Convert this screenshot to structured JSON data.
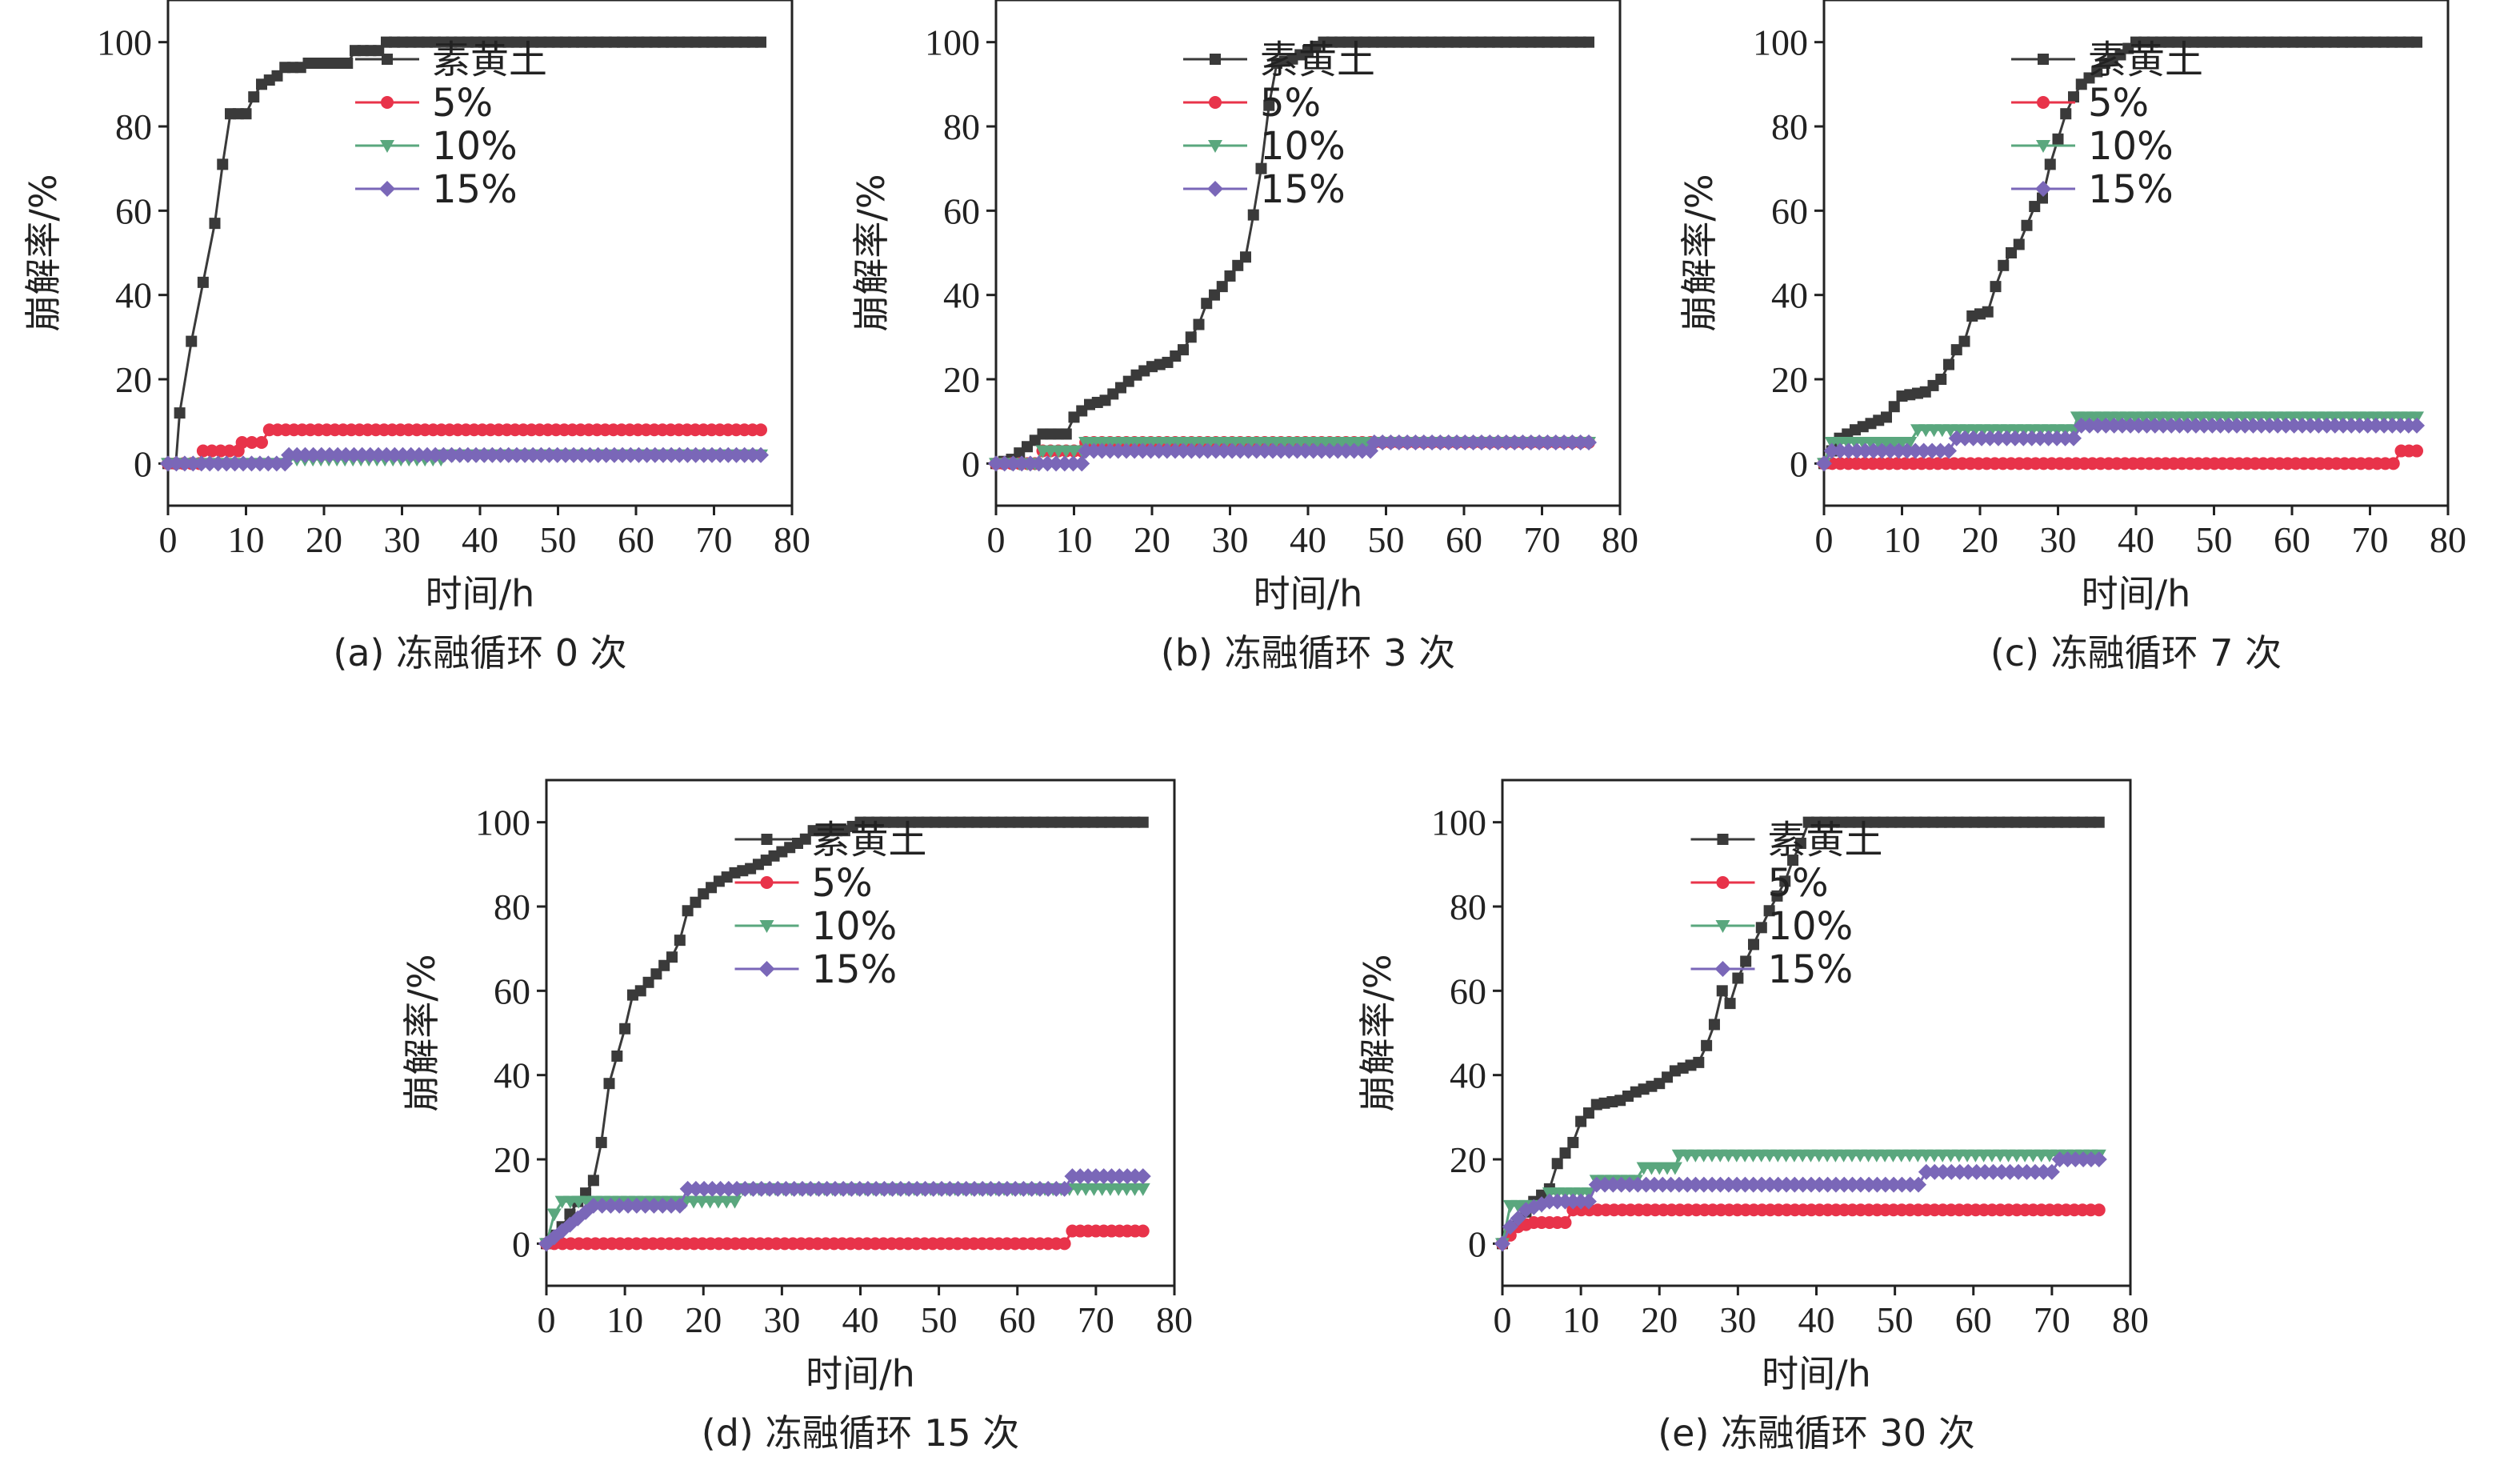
{
  "figure": {
    "background": "#ffffff"
  },
  "chart_data": [
    {
      "type": "line",
      "caption": "(a) 冻融循环 0 次",
      "xlabel": "时间/h",
      "ylabel": "崩解率/%",
      "xlim": [
        0,
        80
      ],
      "ylim": [
        -10,
        110
      ],
      "xticks": [
        0,
        10,
        20,
        30,
        40,
        50,
        60,
        70,
        80
      ],
      "yticks": [
        0,
        20,
        40,
        60,
        80,
        100
      ],
      "legend_position": "upper-right",
      "series": [
        {
          "name": "素黄土",
          "color": "#3a3a3a",
          "marker": "square",
          "points": [
            [
              0,
              0
            ],
            [
              1,
              0
            ],
            [
              1.5,
              12
            ],
            [
              3,
              29
            ],
            [
              4.5,
              43
            ],
            [
              6,
              57
            ],
            [
              7,
              71
            ],
            [
              8,
              83
            ],
            [
              10,
              83
            ],
            [
              11,
              87
            ],
            [
              12,
              90
            ],
            [
              14,
              92
            ],
            [
              15,
              94
            ],
            [
              17,
              94
            ],
            [
              18,
              95
            ],
            [
              23,
              95
            ],
            [
              24,
              98
            ],
            [
              27,
              98
            ],
            [
              28,
              100
            ],
            [
              76,
              100
            ]
          ]
        },
        {
          "name": "5%",
          "color": "#e8334a",
          "marker": "circle",
          "points": [
            [
              0,
              0
            ],
            [
              4,
              0
            ],
            [
              4.5,
              3
            ],
            [
              9,
              3
            ],
            [
              9.5,
              5
            ],
            [
              12,
              5
            ],
            [
              13,
              8
            ],
            [
              76,
              8
            ]
          ]
        },
        {
          "name": "10%",
          "color": "#5aa77e",
          "marker": "triangle-down",
          "points": [
            [
              0,
              0
            ],
            [
              15,
              0
            ],
            [
              15.5,
              1
            ],
            [
              35,
              1
            ],
            [
              35.5,
              2
            ],
            [
              76,
              2
            ]
          ]
        },
        {
          "name": "15%",
          "color": "#7a67b8",
          "marker": "diamond",
          "points": [
            [
              0,
              0
            ],
            [
              15,
              0
            ],
            [
              15.5,
              2
            ],
            [
              76,
              2
            ]
          ]
        }
      ]
    },
    {
      "type": "line",
      "caption": "(b) 冻融循环 3 次",
      "xlabel": "时间/h",
      "ylabel": "崩解率/%",
      "xlim": [
        0,
        80
      ],
      "ylim": [
        -10,
        110
      ],
      "xticks": [
        0,
        10,
        20,
        30,
        40,
        50,
        60,
        70,
        80
      ],
      "yticks": [
        0,
        20,
        40,
        60,
        80,
        100
      ],
      "legend_position": "upper-right",
      "series": [
        {
          "name": "素黄土",
          "color": "#3a3a3a",
          "marker": "square",
          "points": [
            [
              0,
              0
            ],
            [
              2,
              1
            ],
            [
              4,
              4
            ],
            [
              6,
              7
            ],
            [
              9,
              7
            ],
            [
              10,
              11
            ],
            [
              12,
              14
            ],
            [
              14,
              15
            ],
            [
              16,
              18
            ],
            [
              18,
              21
            ],
            [
              20,
              23
            ],
            [
              22,
              24
            ],
            [
              24,
              27
            ],
            [
              26,
              33
            ],
            [
              27,
              38
            ],
            [
              29,
              42
            ],
            [
              31,
              47
            ],
            [
              32,
              49
            ],
            [
              33,
              59
            ],
            [
              34,
              70
            ],
            [
              35,
              85
            ],
            [
              36,
              95
            ],
            [
              38,
              96
            ],
            [
              40,
              98
            ],
            [
              42,
              100
            ],
            [
              76,
              100
            ]
          ]
        },
        {
          "name": "5%",
          "color": "#e8334a",
          "marker": "circle",
          "points": [
            [
              0,
              0
            ],
            [
              5,
              0
            ],
            [
              6,
              3
            ],
            [
              11,
              3
            ],
            [
              11.5,
              5
            ],
            [
              48,
              5
            ],
            [
              48.5,
              5
            ],
            [
              76,
              5
            ]
          ]
        },
        {
          "name": "10%",
          "color": "#5aa77e",
          "marker": "triangle-down",
          "points": [
            [
              0,
              0
            ],
            [
              5,
              0
            ],
            [
              6,
              3
            ],
            [
              11,
              3
            ],
            [
              11.5,
              5
            ],
            [
              76,
              5
            ]
          ]
        },
        {
          "name": "15%",
          "color": "#7a67b8",
          "marker": "diamond",
          "points": [
            [
              0,
              0
            ],
            [
              11,
              0
            ],
            [
              11.5,
              3
            ],
            [
              48,
              3
            ],
            [
              48.5,
              5
            ],
            [
              76,
              5
            ]
          ]
        }
      ]
    },
    {
      "type": "line",
      "caption": "(c) 冻融循环 7 次",
      "xlabel": "时间/h",
      "ylabel": "崩解率/%",
      "xlim": [
        0,
        80
      ],
      "ylim": [
        -10,
        110
      ],
      "xticks": [
        0,
        10,
        20,
        30,
        40,
        50,
        60,
        70,
        80
      ],
      "yticks": [
        0,
        20,
        40,
        60,
        80,
        100
      ],
      "legend_position": "upper-right",
      "series": [
        {
          "name": "素黄土",
          "color": "#3a3a3a",
          "marker": "square",
          "points": [
            [
              0,
              0
            ],
            [
              2,
              6
            ],
            [
              4,
              8
            ],
            [
              8,
              11
            ],
            [
              10,
              16
            ],
            [
              13,
              17
            ],
            [
              15,
              20
            ],
            [
              17,
              27
            ],
            [
              18,
              29
            ],
            [
              19,
              35
            ],
            [
              21,
              36
            ],
            [
              22,
              42
            ],
            [
              23,
              47
            ],
            [
              24,
              50
            ],
            [
              25,
              52
            ],
            [
              27,
              61
            ],
            [
              28,
              63
            ],
            [
              29,
              71
            ],
            [
              30,
              77
            ],
            [
              31,
              83
            ],
            [
              32,
              87
            ],
            [
              33,
              90
            ],
            [
              35,
              93
            ],
            [
              36,
              95
            ],
            [
              38,
              97
            ],
            [
              40,
              100
            ],
            [
              76,
              100
            ]
          ]
        },
        {
          "name": "5%",
          "color": "#e8334a",
          "marker": "circle",
          "points": [
            [
              0,
              0
            ],
            [
              73,
              0
            ],
            [
              74,
              3
            ],
            [
              76,
              3
            ]
          ]
        },
        {
          "name": "10%",
          "color": "#5aa77e",
          "marker": "triangle-down",
          "points": [
            [
              0,
              0
            ],
            [
              1,
              5
            ],
            [
              11,
              5
            ],
            [
              12,
              8
            ],
            [
              32,
              8
            ],
            [
              32.5,
              11
            ],
            [
              76,
              11
            ]
          ]
        },
        {
          "name": "15%",
          "color": "#7a67b8",
          "marker": "diamond",
          "points": [
            [
              0,
              0
            ],
            [
              1,
              3
            ],
            [
              16,
              3
            ],
            [
              17,
              6
            ],
            [
              32,
              6
            ],
            [
              33,
              9
            ],
            [
              76,
              9
            ]
          ]
        }
      ]
    },
    {
      "type": "line",
      "caption": "(d) 冻融循环 15 次",
      "xlabel": "时间/h",
      "ylabel": "崩解率/%",
      "xlim": [
        0,
        80
      ],
      "ylim": [
        -10,
        110
      ],
      "xticks": [
        0,
        10,
        20,
        30,
        40,
        50,
        60,
        70,
        80
      ],
      "yticks": [
        0,
        20,
        40,
        60,
        80,
        100
      ],
      "legend_position": "upper-right",
      "series": [
        {
          "name": "素黄土",
          "color": "#3a3a3a",
          "marker": "square",
          "points": [
            [
              0,
              0
            ],
            [
              2,
              4
            ],
            [
              4,
              10
            ],
            [
              5,
              12
            ],
            [
              6,
              15
            ],
            [
              7,
              24
            ],
            [
              8,
              38
            ],
            [
              10,
              51
            ],
            [
              11,
              59
            ],
            [
              12,
              60
            ],
            [
              14,
              64
            ],
            [
              16,
              68
            ],
            [
              17,
              72
            ],
            [
              18,
              79
            ],
            [
              20,
              83
            ],
            [
              22,
              86
            ],
            [
              24,
              88
            ],
            [
              26,
              89
            ],
            [
              28,
              91
            ],
            [
              30,
              93
            ],
            [
              33,
              96
            ],
            [
              34,
              98
            ],
            [
              38,
              98
            ],
            [
              40,
              100
            ],
            [
              76,
              100
            ]
          ]
        },
        {
          "name": "5%",
          "color": "#e8334a",
          "marker": "circle",
          "points": [
            [
              0,
              0
            ],
            [
              1,
              0
            ],
            [
              66,
              0
            ],
            [
              67,
              3
            ],
            [
              76,
              3
            ]
          ]
        },
        {
          "name": "10%",
          "color": "#5aa77e",
          "marker": "triangle-down",
          "points": [
            [
              0,
              0
            ],
            [
              1,
              7
            ],
            [
              2,
              10
            ],
            [
              24,
              10
            ],
            [
              25,
              13
            ],
            [
              76,
              13
            ]
          ]
        },
        {
          "name": "15%",
          "color": "#7a67b8",
          "marker": "diamond",
          "points": [
            [
              0,
              0
            ],
            [
              2,
              3
            ],
            [
              4,
              6
            ],
            [
              6,
              9
            ],
            [
              17,
              9
            ],
            [
              18,
              13
            ],
            [
              66,
              13
            ],
            [
              67,
              16
            ],
            [
              76,
              16
            ]
          ]
        }
      ]
    },
    {
      "type": "line",
      "caption": "(e) 冻融循环 30 次",
      "xlabel": "时间/h",
      "ylabel": "崩解率/%",
      "xlim": [
        0,
        80
      ],
      "ylim": [
        -10,
        110
      ],
      "xticks": [
        0,
        10,
        20,
        30,
        40,
        50,
        60,
        70,
        80
      ],
      "yticks": [
        0,
        20,
        40,
        60,
        80,
        100
      ],
      "legend_position": "upper-right",
      "series": [
        {
          "name": "素黄土",
          "color": "#3a3a3a",
          "marker": "square",
          "points": [
            [
              0,
              0
            ],
            [
              2,
              5
            ],
            [
              4,
              10
            ],
            [
              6,
              13
            ],
            [
              7,
              19
            ],
            [
              9,
              24
            ],
            [
              10,
              29
            ],
            [
              12,
              33
            ],
            [
              15,
              34
            ],
            [
              17,
              36
            ],
            [
              20,
              38
            ],
            [
              22,
              41
            ],
            [
              25,
              43
            ],
            [
              26,
              47
            ],
            [
              27,
              52
            ],
            [
              28,
              60
            ],
            [
              29,
              57
            ],
            [
              30,
              63
            ],
            [
              31,
              67
            ],
            [
              33,
              75
            ],
            [
              34,
              79
            ],
            [
              36,
              86
            ],
            [
              37,
              91
            ],
            [
              38,
              95
            ],
            [
              39,
              100
            ],
            [
              76,
              100
            ]
          ]
        },
        {
          "name": "5%",
          "color": "#e8334a",
          "marker": "circle",
          "points": [
            [
              0,
              0
            ],
            [
              2,
              4
            ],
            [
              4,
              5
            ],
            [
              8,
              5
            ],
            [
              9,
              8
            ],
            [
              76,
              8
            ]
          ]
        },
        {
          "name": "10%",
          "color": "#5aa77e",
          "marker": "triangle-down",
          "points": [
            [
              0,
              0
            ],
            [
              1,
              9
            ],
            [
              5,
              9
            ],
            [
              6,
              12
            ],
            [
              11,
              12
            ],
            [
              12,
              15
            ],
            [
              17,
              15
            ],
            [
              18,
              18
            ],
            [
              22,
              18
            ],
            [
              22.5,
              21
            ],
            [
              76,
              21
            ]
          ]
        },
        {
          "name": "15%",
          "color": "#7a67b8",
          "marker": "diamond",
          "points": [
            [
              0,
              0
            ],
            [
              1,
              4
            ],
            [
              3,
              8
            ],
            [
              6,
              10
            ],
            [
              11,
              10
            ],
            [
              12,
              14
            ],
            [
              53,
              14
            ],
            [
              54,
              17
            ],
            [
              70,
              17
            ],
            [
              71,
              20
            ],
            [
              76,
              20
            ]
          ]
        }
      ]
    }
  ]
}
